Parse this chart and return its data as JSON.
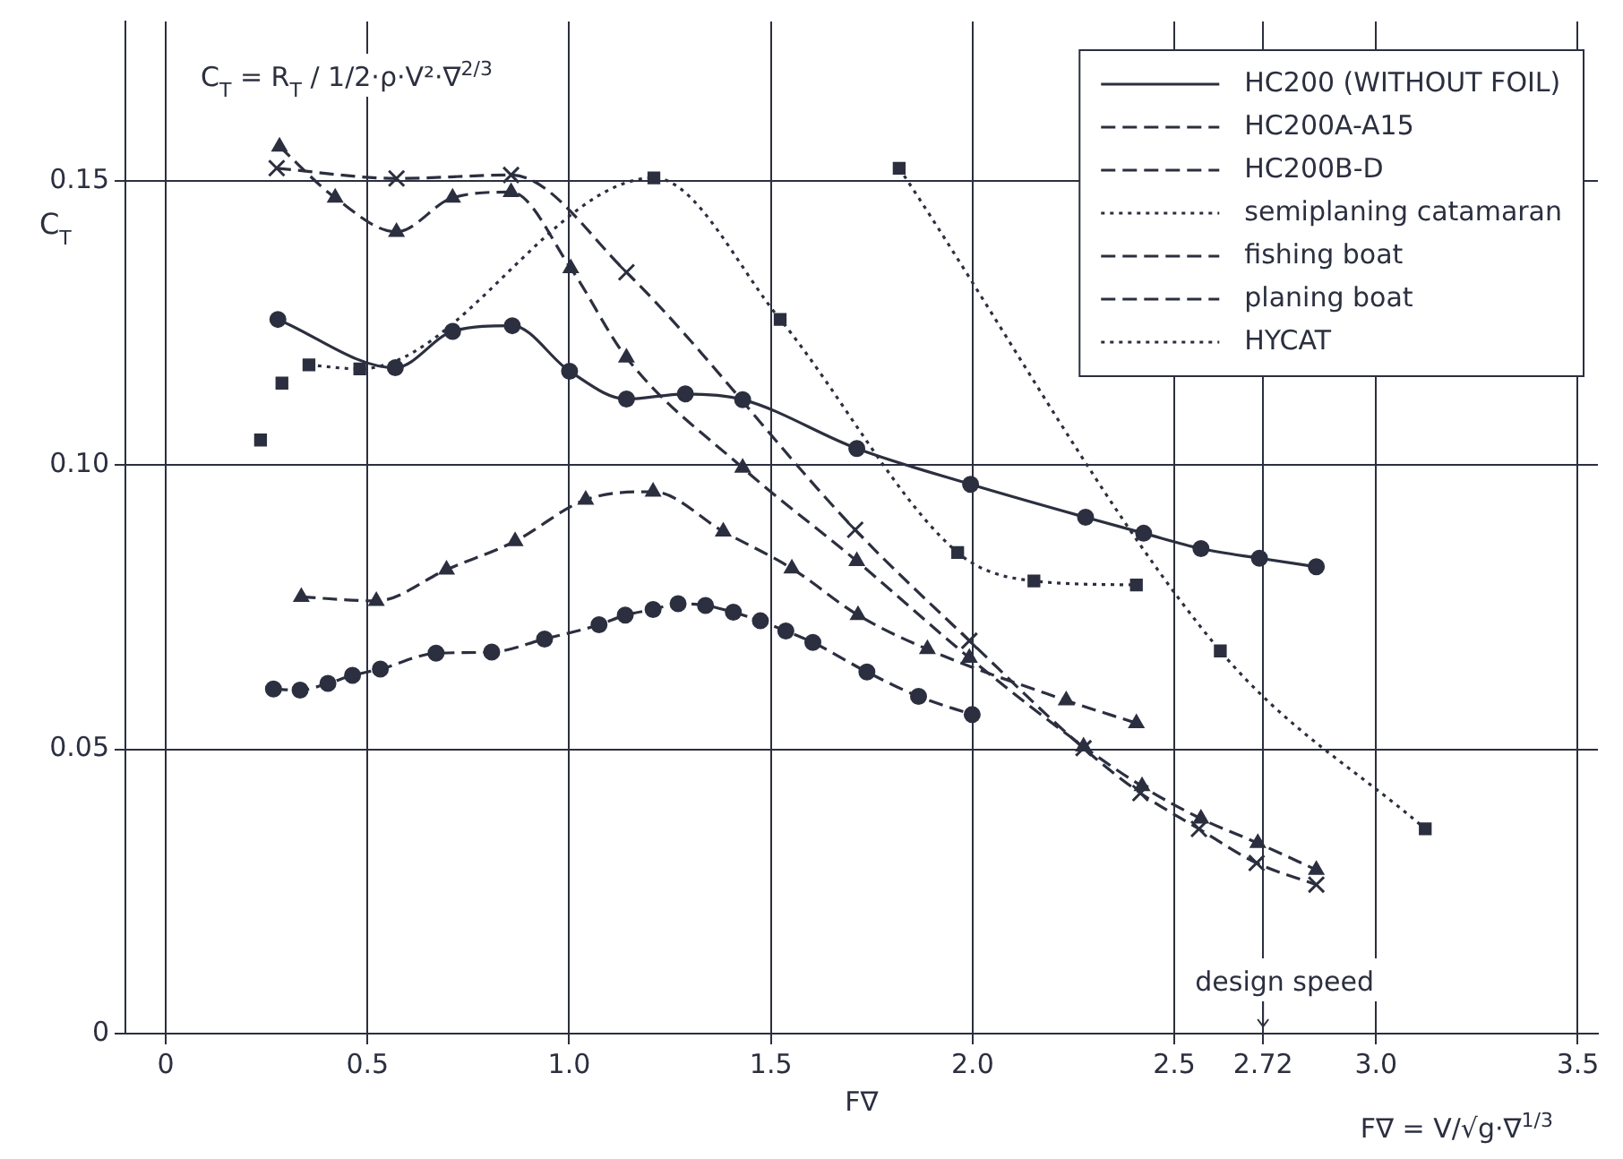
{
  "chart_data": {
    "type": "line",
    "xlabel": "F∇",
    "ylabel": "C$_{T}$",
    "xlim": [
      -0.1,
      3.55
    ],
    "ylim": [
      0,
      0.178
    ],
    "xticks": [
      0,
      0.5,
      {
        "value": 1,
        "label": "1.0"
      },
      1.5,
      {
        "value": 2,
        "label": "2.0"
      },
      2.5,
      2.72,
      {
        "value": 3,
        "label": "3.0"
      },
      3.5
    ],
    "yticks": [
      0,
      0.05,
      {
        "value": 0.1,
        "label": "0.10"
      },
      0.15
    ],
    "grid": true,
    "legend": "top right",
    "annotations": [
      "C$_{T}$ = R$_{T}$ / 1/2·ρ·V²·∇$^{2/3}$",
      "design speed",
      "F∇ = V/√g·∇$^{1/3}$"
    ],
    "series": [
      {
        "name": "HC200 (WITHOUT FOIL)",
        "color": "#2b2f3f",
        "marker": "circle",
        "line_style": "solid",
        "x": [
          0.278,
          0.569,
          0.711,
          0.859,
          1.001,
          1.142,
          1.288,
          1.43,
          1.713,
          1.995,
          2.28,
          2.424,
          2.566,
          2.711,
          2.852
        ],
        "values": [
          0.1256,
          0.1171,
          0.1235,
          0.1245,
          0.1165,
          0.1116,
          0.1125,
          0.1115,
          0.1029,
          0.0966,
          0.0908,
          0.088,
          0.0853,
          0.0836,
          0.0821
        ]
      },
      {
        "name": "HC200A-A15",
        "color": "#2b2f3f",
        "marker": "triangle",
        "line_style": "dashed",
        "x": [
          0.282,
          0.42,
          0.572,
          0.711,
          0.856,
          1.004,
          1.142,
          1.43,
          1.713,
          1.992,
          2.275,
          2.42,
          2.566,
          2.707,
          2.852
        ],
        "values": [
          0.156,
          0.147,
          0.141,
          0.147,
          0.148,
          0.1346,
          0.1189,
          0.0995,
          0.0831,
          0.0661,
          0.0505,
          0.0435,
          0.0378,
          0.0335,
          0.0288
        ]
      },
      {
        "name": "HC200B-D",
        "color": "#2b2f3f",
        "marker": "cross",
        "line_style": "dashed",
        "x": [
          0.275,
          0.572,
          0.856,
          1.142,
          1.709,
          1.992,
          2.275,
          2.416,
          2.561,
          2.704,
          2.852
        ],
        "values": [
          0.1522,
          0.1504,
          0.151,
          0.1339,
          0.0886,
          0.0691,
          0.0502,
          0.0423,
          0.036,
          0.03,
          0.0262
        ]
      },
      {
        "name": "semiplaning catamaran",
        "color": "#2b2f3f",
        "marker": "square",
        "line_style": "dotted",
        "x": [
          0.355,
          0.481,
          1.21,
          1.523,
          1.963,
          2.152,
          2.406
        ],
        "values": [
          0.1176,
          0.1169,
          0.1505,
          0.1256,
          0.0846,
          0.0796,
          0.0789
        ]
      },
      {
        "type": "scatter",
        "color": "#2b2f3f",
        "marker": "square",
        "x": [
          0.235,
          0.288
        ],
        "values": [
          0.1044,
          0.1144
        ]
      },
      {
        "name": "fishing boat",
        "color": "#2b2f3f",
        "marker": "circle",
        "line_style": "dashed",
        "x": [
          0.267,
          0.333,
          0.402,
          0.463,
          0.532,
          0.67,
          0.808,
          0.939,
          1.074,
          1.139,
          1.208,
          1.27,
          1.338,
          1.407,
          1.474,
          1.537,
          1.604,
          1.738,
          1.866,
          1.999
        ],
        "values": [
          0.0606,
          0.0604,
          0.0616,
          0.063,
          0.0641,
          0.0669,
          0.0671,
          0.0694,
          0.0719,
          0.0736,
          0.0746,
          0.0756,
          0.0753,
          0.0741,
          0.0726,
          0.0708,
          0.0688,
          0.0636,
          0.0593,
          0.0561
        ]
      },
      {
        "name": "planing boat",
        "color": "#2b2f3f",
        "marker": "triangle",
        "line_style": "dashed",
        "x": [
          0.336,
          0.522,
          0.696,
          0.866,
          1.041,
          1.208,
          1.382,
          1.552,
          1.716,
          1.888,
          2.232,
          2.406
        ],
        "values": [
          0.0768,
          0.0761,
          0.0816,
          0.0866,
          0.0939,
          0.0953,
          0.0883,
          0.0818,
          0.0736,
          0.0676,
          0.0586,
          0.0546
        ]
      },
      {
        "name": "HYCAT",
        "color": "#2b2f3f",
        "marker": "square",
        "line_style": "dotted",
        "x": [
          1.818,
          2.614,
          3.122
        ],
        "values": [
          0.1522,
          0.0673,
          0.036
        ]
      }
    ]
  }
}
